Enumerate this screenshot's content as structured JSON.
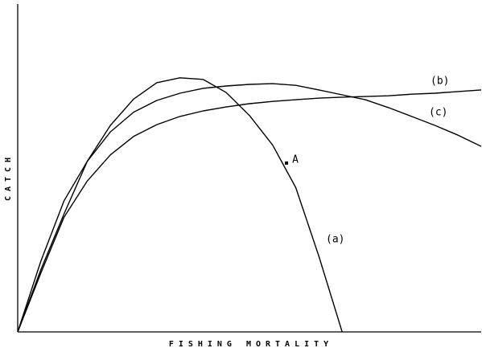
{
  "chart_data": {
    "type": "line",
    "x_label": "FISHING MORTALITY",
    "y_label": "CATCH",
    "x": [
      0,
      5,
      10,
      15,
      20,
      25,
      30,
      35,
      40,
      45,
      50,
      55,
      60,
      65,
      70,
      75,
      80,
      85,
      90,
      95,
      100
    ],
    "series": [
      {
        "name": "(a)",
        "color": "#000000",
        "values": [
          0,
          19,
          36,
          52,
          63,
          71,
          76,
          77.5,
          77,
          73,
          66,
          57,
          44,
          23,
          0,
          null,
          null,
          null,
          null,
          null,
          null
        ]
      },
      {
        "name": "(b)",
        "color": "#000000",
        "values": [
          0,
          21.6,
          40,
          52,
          61,
          67,
          70.6,
          72.8,
          74.3,
          75,
          75.5,
          75.7,
          75.2,
          73.8,
          72.3,
          70.8,
          68.4,
          65.7,
          63,
          60,
          56.6
        ]
      },
      {
        "name": "(c)",
        "color": "#000000",
        "values": [
          0,
          18,
          35,
          46,
          54,
          59.6,
          63.2,
          65.7,
          67.4,
          68.6,
          69.6,
          70.3,
          70.8,
          71.3,
          71.6,
          71.8,
          72,
          72.5,
          72.8,
          73.3,
          73.8
        ]
      }
    ],
    "annotations": [
      {
        "text": "A",
        "x": 58,
        "y": 51.5
      }
    ],
    "xlim": [
      0,
      100
    ],
    "ylim": [
      0,
      100
    ]
  }
}
